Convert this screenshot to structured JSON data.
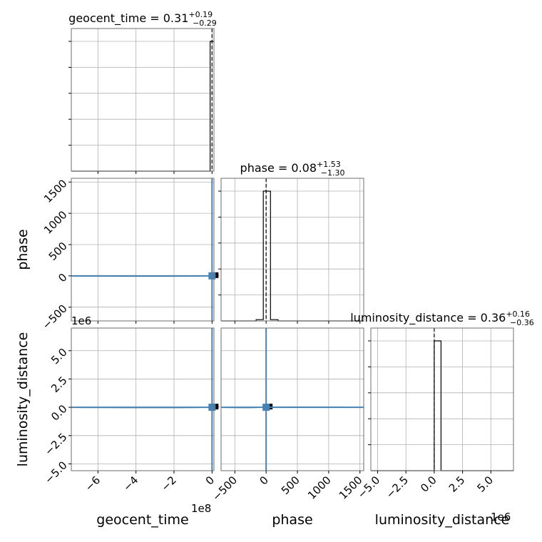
{
  "chart_data": {
    "type": "corner",
    "parameters": [
      "geocent_time",
      "phase",
      "luminosity_distance"
    ],
    "titles": [
      {
        "name": "geocent_time",
        "median": "0.31",
        "plus": "+0.19",
        "minus": "−0.29"
      },
      {
        "name": "phase",
        "median": "0.08",
        "plus": "+1.53",
        "minus": "−1.30"
      },
      {
        "name": "luminosity_distance",
        "median": "0.36",
        "plus": "+0.16",
        "minus": "−0.36"
      }
    ],
    "axes": {
      "geocent_time": {
        "range": [
          -740000000,
          10000000
        ],
        "ticks": [
          -600000000,
          -400000000,
          -200000000,
          0
        ],
        "tick_labels": [
          "−6",
          "−4",
          "−2",
          "0"
        ],
        "offset": "1e8"
      },
      "phase": {
        "range": [
          -720,
          1560
        ],
        "ticks": [
          -500,
          0,
          500,
          1000,
          1500
        ],
        "tick_labels": [
          "−500",
          "0",
          "500",
          "1000",
          "1500"
        ]
      },
      "luminosity_distance": {
        "range": [
          -5600000,
          7000000
        ],
        "ticks": [
          -5000000,
          -2500000,
          0,
          2500000,
          5000000
        ],
        "tick_labels": [
          "−5.0",
          "−2.5",
          "0.0",
          "2.5",
          "5.0"
        ],
        "offset": "1e6"
      }
    },
    "histograms": {
      "geocent_time": {
        "bins": [
          [
            -740000000,
            -10000000,
            0
          ],
          [
            -10000000,
            10000000,
            1
          ]
        ],
        "median": 0.31
      },
      "phase": {
        "bins": [
          [
            -720,
            -160,
            0
          ],
          [
            -160,
            -45,
            0.01
          ],
          [
            -45,
            70,
            1
          ],
          [
            70,
            190,
            0.01
          ],
          [
            190,
            1560,
            0
          ]
        ],
        "median": 0.08
      },
      "luminosity_distance": {
        "bins": [
          [
            -5600000,
            0,
            0
          ],
          [
            0,
            600000,
            1
          ],
          [
            600000,
            7000000,
            0
          ]
        ],
        "median": 0.36
      }
    },
    "truth_color": "#4682b4",
    "line_color": "#000000",
    "grid": true
  }
}
